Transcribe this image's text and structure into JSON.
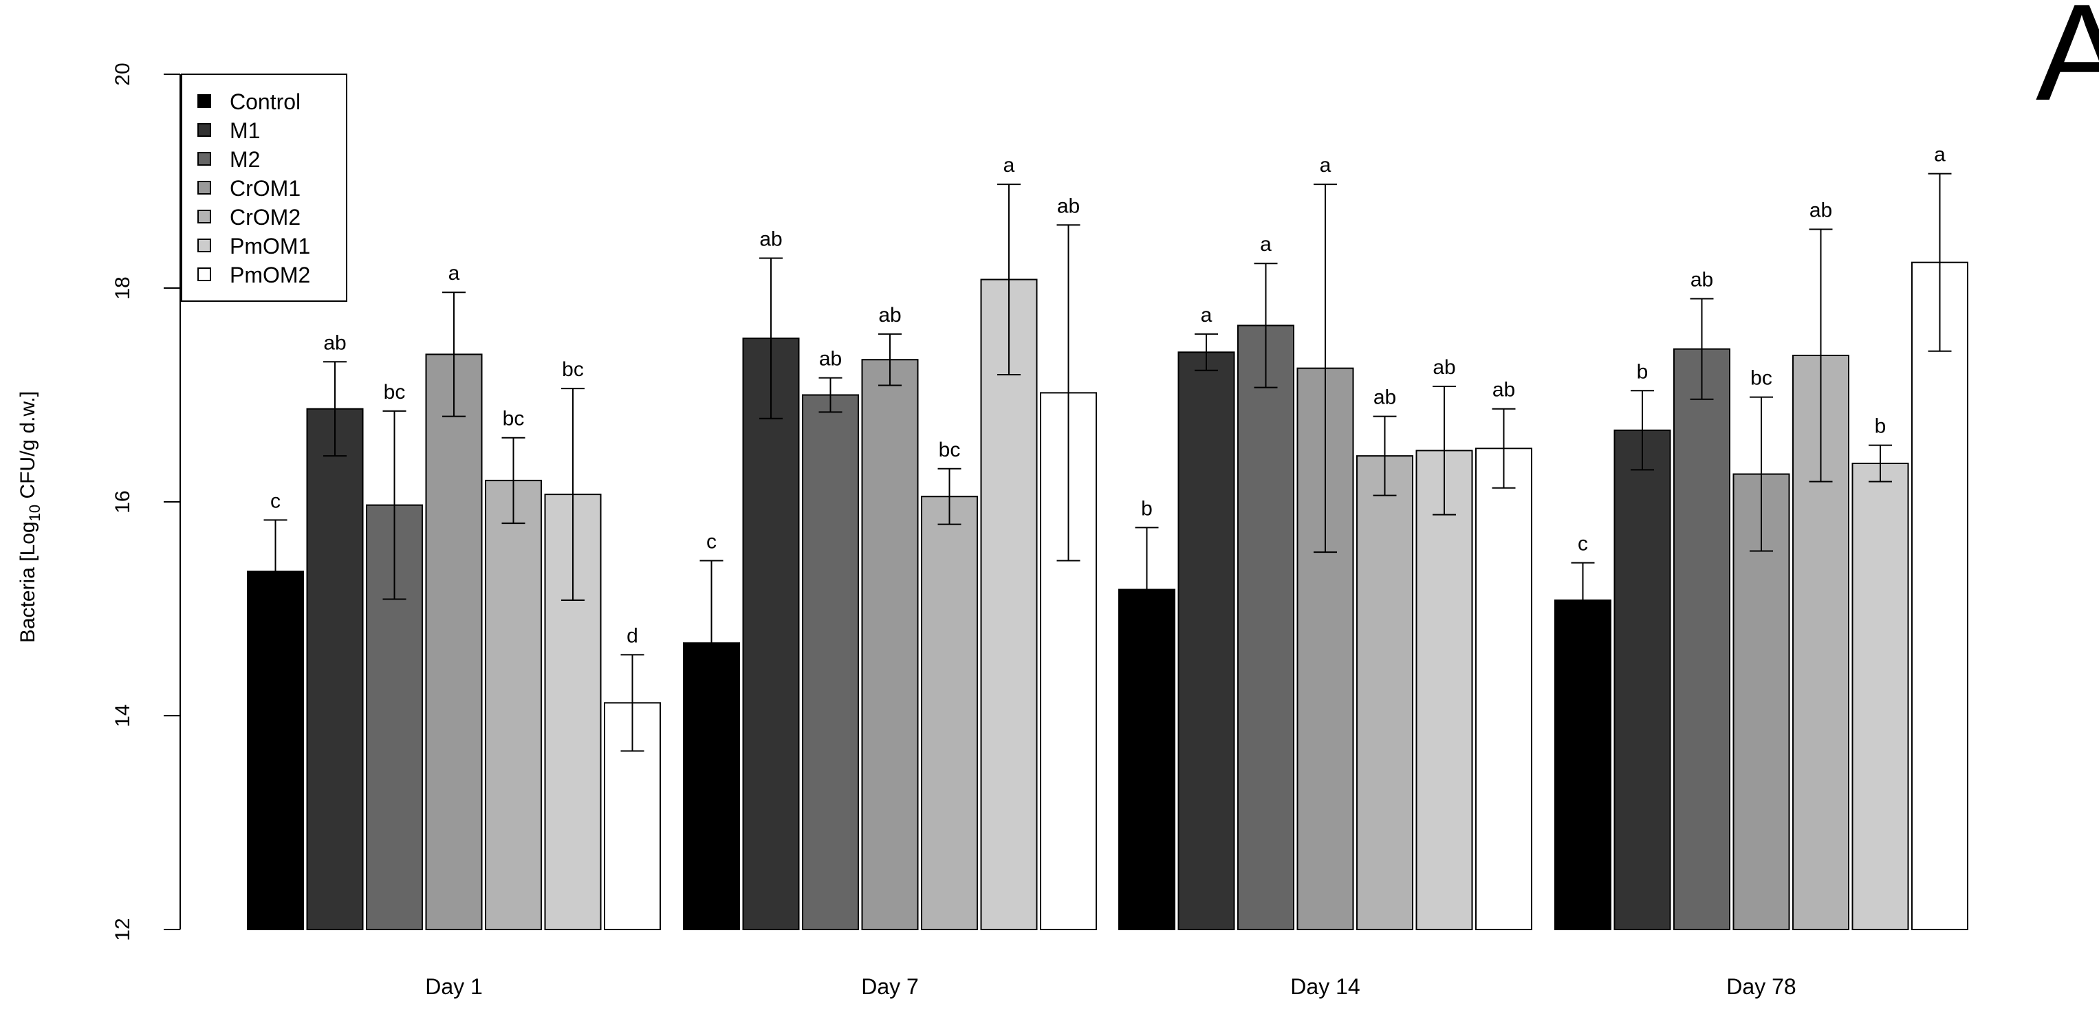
{
  "panel_label": "A",
  "chart_data": {
    "type": "bar",
    "title": "",
    "xlabel": "",
    "ylabel_main": "Bacteria [Log",
    "ylabel_sub": "10",
    "ylabel_unit": " CFU/g d.w.]",
    "ylim": [
      12,
      20
    ],
    "yticks": [
      "12",
      "14",
      "16",
      "18",
      "20"
    ],
    "categories": [
      "Day 1",
      "Day 7",
      "Day 14",
      "Day 78"
    ],
    "series": [
      {
        "name": "Control",
        "color": "#000000",
        "values": [
          15.35,
          14.68,
          15.18,
          15.08
        ],
        "err": [
          0.48,
          0.77,
          0.58,
          0.35
        ],
        "letters": [
          "c",
          "c",
          "b",
          "c"
        ]
      },
      {
        "name": "M1",
        "color": "#333333",
        "values": [
          16.87,
          17.53,
          17.4,
          16.67
        ],
        "err": [
          0.44,
          0.75,
          0.17,
          0.37
        ],
        "letters": [
          "ab",
          "ab",
          "a",
          "b"
        ]
      },
      {
        "name": "M2",
        "color": "#666666",
        "values": [
          15.97,
          17.0,
          17.65,
          17.43
        ],
        "err": [
          0.88,
          0.16,
          0.58,
          0.47
        ],
        "letters": [
          "bc",
          "ab",
          "a",
          "ab"
        ]
      },
      {
        "name": "CrOM1",
        "color": "#999999",
        "values": [
          17.38,
          17.33,
          17.25,
          16.26
        ],
        "err": [
          0.58,
          0.24,
          1.72,
          0.72
        ],
        "letters": [
          "a",
          "ab",
          "a",
          "bc"
        ]
      },
      {
        "name": "CrOM2",
        "color": "#b3b3b3",
        "values": [
          16.2,
          16.05,
          16.43,
          17.37
        ],
        "err": [
          0.4,
          0.26,
          0.37,
          1.18
        ],
        "letters": [
          "bc",
          "bc",
          "ab",
          "ab"
        ]
      },
      {
        "name": "PmOM1",
        "color": "#cccccc",
        "values": [
          16.07,
          18.08,
          16.48,
          16.36
        ],
        "err": [
          0.99,
          0.89,
          0.6,
          0.17
        ],
        "letters": [
          "bc",
          "a",
          "ab",
          "b"
        ]
      },
      {
        "name": "PmOM2",
        "color": "#ffffff",
        "values": [
          14.12,
          17.02,
          16.5,
          18.24
        ],
        "err": [
          0.45,
          1.57,
          0.37,
          0.83
        ],
        "letters": [
          "d",
          "ab",
          "ab",
          "a"
        ]
      }
    ],
    "legend_position": "top-left",
    "grid": false
  }
}
